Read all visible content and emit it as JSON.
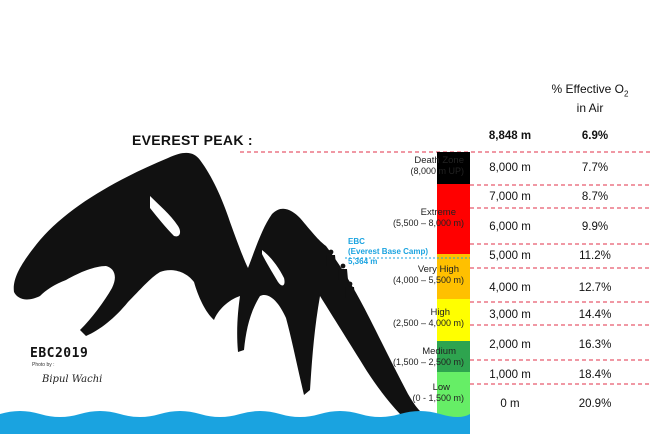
{
  "header": {
    "o2_title_line1": "% Effective O",
    "o2_subscript": "2",
    "o2_title_line2": "in Air"
  },
  "peak": {
    "title": "EVEREST PEAK :",
    "altitude": "8,848 m",
    "oxygen": "6.9%"
  },
  "ebc": {
    "line1": "EBC",
    "line2": "(Everest Base Camp)",
    "line3": "5,364 m"
  },
  "rows": [
    {
      "altitude": "8,000 m",
      "oxygen": "7.7%"
    },
    {
      "altitude": "7,000 m",
      "oxygen": "8.7%"
    },
    {
      "altitude": "6,000 m",
      "oxygen": "9.9%"
    },
    {
      "altitude": "5,000 m",
      "oxygen": "11.2%"
    },
    {
      "altitude": "4,000 m",
      "oxygen": "12.7%"
    },
    {
      "altitude": "3,000 m",
      "oxygen": "14.4%"
    },
    {
      "altitude": "2,000 m",
      "oxygen": "16.3%"
    },
    {
      "altitude": "1,000 m",
      "oxygen": "18.4%"
    },
    {
      "altitude": "0 m",
      "oxygen": "20.9%"
    }
  ],
  "zones": [
    {
      "name": "Death Zone",
      "range": "(8,000 m UP)",
      "color": "#000000"
    },
    {
      "name": "Extreme",
      "range": "(5,500 – 8,000 m)",
      "color": "#ff0000"
    },
    {
      "name": "Very High",
      "range": "(4,000 – 5,500 m)",
      "color": "#ffc000"
    },
    {
      "name": "High",
      "range": "(2,500 – 4,000 m)",
      "color": "#ffff00"
    },
    {
      "name": "Medium",
      "range": "(1,500 – 2,500 m)",
      "color": "#2ea44f"
    },
    {
      "name": "Low",
      "range": "(0 - 1,500 m)",
      "color": "#66ee66"
    }
  ],
  "branding": {
    "logo": "EBC2019",
    "photo_by": "Photo by :",
    "signature": "Bipul Wachi"
  },
  "colors": {
    "dashed_line": "#e0304a",
    "ebc_line": "#1aa3e0",
    "water": "#1aa3e0",
    "mountain": "#111111"
  }
}
